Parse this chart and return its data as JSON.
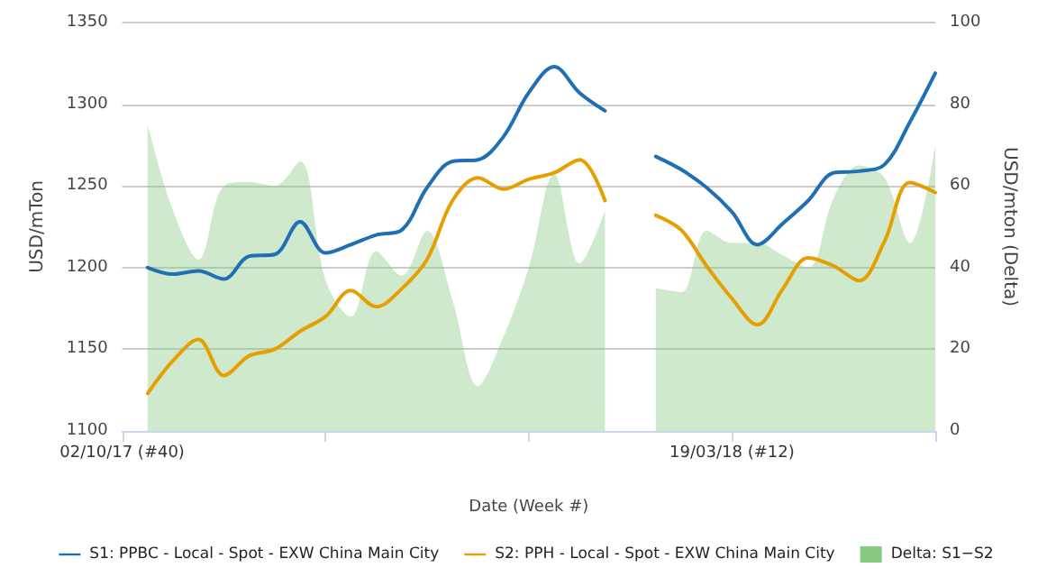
{
  "chart_data": {
    "type": "line",
    "xlabel": "Date (Week #)",
    "ylabel": "USD/mTon",
    "y2label": "USD/mton (Delta)",
    "x": [
      "2017-10-09",
      "2017-10-16",
      "2017-10-23",
      "2017-10-30",
      "2017-11-06",
      "2017-11-13",
      "2017-11-20",
      "2017-11-27",
      "2017-12-04",
      "2017-12-11",
      "2017-12-18",
      "2017-12-25",
      "2018-01-01",
      "2018-01-08",
      "2018-01-15",
      "2018-01-22",
      "2018-01-29",
      "2018-02-05",
      "2018-02-12",
      "2018-02-19",
      "2018-02-26",
      "2018-03-05",
      "2018-03-12",
      "2018-03-19",
      "2018-03-26",
      "2018-04-02",
      "2018-04-09",
      "2018-04-16",
      "2018-04-23",
      "2018-04-30",
      "2018-05-07",
      "2018-05-14"
    ],
    "series": [
      {
        "name": "S1: PPBC - Local - Spot - EXW China Main City",
        "color": "#1f6fb4",
        "values": [
          1200,
          1196,
          1198,
          1193,
          1207,
          1208,
          1228,
          1209,
          1214,
          1220,
          1223,
          1249,
          1265,
          1266,
          1280,
          1307,
          1323,
          1307,
          1296,
          null,
          1268,
          1260,
          1249,
          1234,
          1214,
          1227,
          1241,
          1258,
          1259,
          1263,
          1289,
          1319
        ]
      },
      {
        "name": "S2: PPH - Local - Spot - EXW China Main City",
        "color": "#e69f00",
        "values": [
          1123,
          1143,
          1156,
          1134,
          1146,
          1150,
          1161,
          1170,
          1186,
          1176,
          1187,
          1205,
          1241,
          1255,
          1248,
          1254,
          1258,
          1266,
          1241,
          null,
          1232,
          1223,
          1201,
          1181,
          1165,
          1187,
          1206,
          1201,
          1192,
          1216,
          1252,
          1246
        ]
      },
      {
        "name": "Delta: S1−S2",
        "type": "area",
        "axis": "y2",
        "color": "#86c982",
        "values": [
          75,
          54,
          42,
          60,
          61,
          60,
          66,
          37,
          28,
          44,
          38,
          49,
          32,
          11,
          23,
          40,
          63,
          41,
          54,
          null,
          35,
          34,
          49,
          46,
          46,
          43,
          40,
          57,
          65,
          62,
          46,
          70
        ]
      }
    ],
    "xlim": [
      "2017-10-02",
      "2018-05-14"
    ],
    "xticks": [
      {
        "value": "2017-10-02",
        "label": "02/10/17 (#40)"
      },
      {
        "value": "2017-11-27",
        "label": null
      },
      {
        "value": "2018-01-22",
        "label": null
      },
      {
        "value": "2018-03-19",
        "label": "19/03/18 (#12)"
      },
      {
        "value": "2018-05-14",
        "label": null
      }
    ],
    "ylim": [
      1100,
      1350
    ],
    "yticks": [
      1100,
      1150,
      1200,
      1250,
      1300,
      1350
    ],
    "y2lim": [
      0,
      100
    ],
    "y2ticks": [
      0,
      20,
      40,
      60,
      80,
      100
    ],
    "grid": "y",
    "legend": "bottom",
    "marker": "none",
    "line_style": "solid"
  }
}
